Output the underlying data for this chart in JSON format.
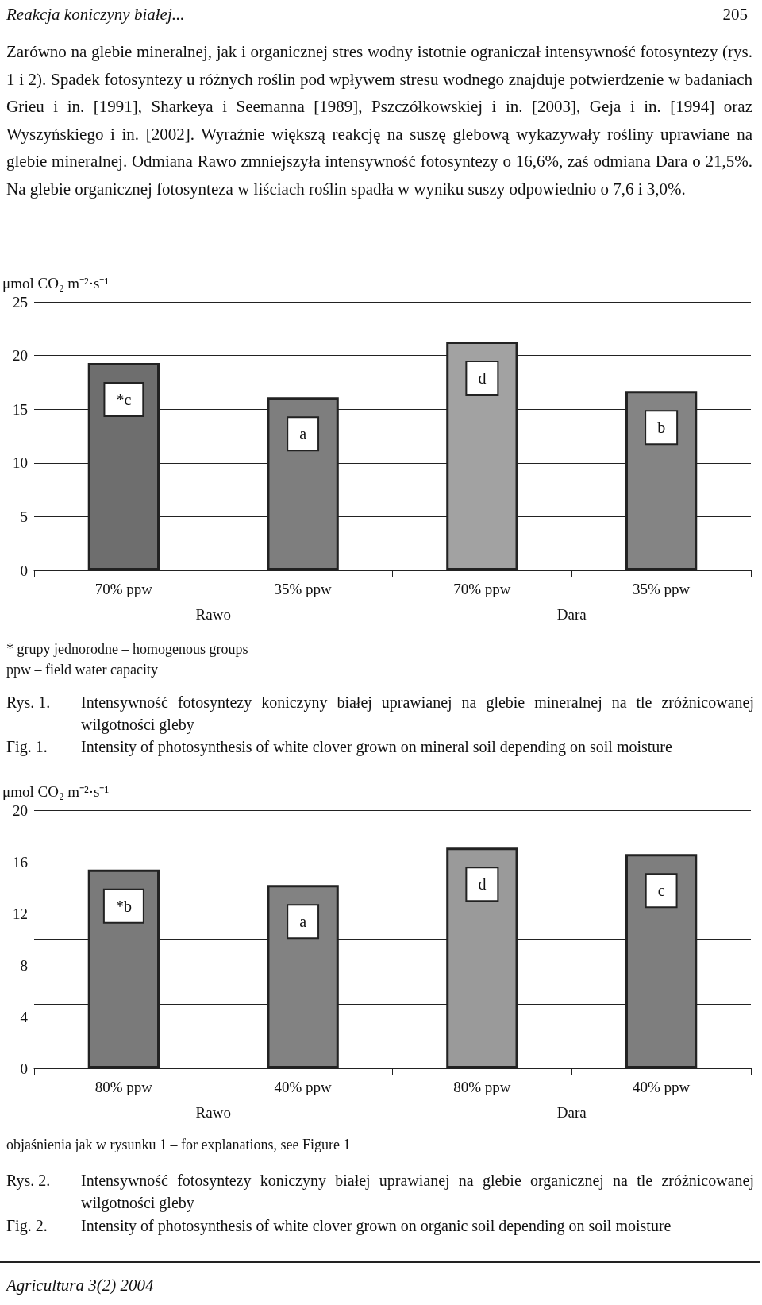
{
  "chart_data": [
    {
      "type": "bar",
      "ylabel": "μmol CO₂ m⁻²·s⁻¹",
      "categories": [
        "70% ppw",
        "35% ppw",
        "70% ppw",
        "35% ppw"
      ],
      "values": [
        19.3,
        16.1,
        21.3,
        16.7
      ],
      "value_labels": [
        "*c",
        "a",
        "d",
        "b"
      ],
      "colors": [
        "#6e6e6e",
        "#7e7e7e",
        "#a2a2a2",
        "#848484"
      ],
      "ylim": [
        0,
        25
      ],
      "yticks": [
        0,
        5,
        10,
        15,
        20,
        25
      ],
      "grid": "y",
      "annotations": [
        "Reakcja koniczyny białej...",
        "205",
        "Zarówno na glebie mineralnej, jak i organicznej stres wodny istotnie ograniczał intensywność fotosyntezy (rys. 1 i 2). Spadek fotosyntezy u różnych roślin pod wpływem stresu wodnego znajduje potwierdzenie w badaniach Grieu i in. [1991], Sharkeya i Seemanna [1989], Pszczółkowskiej i in. [2003], Geja i in. [1994] oraz Wyszyńskiego i in. [2002]. Wyraźnie większą reakcję na suszę glebową wykazywały rośliny uprawiane na glebie mineralnej. Odmiana Rawo zmniejszyła intensywność fotosyntezy o 16,6%, zaś odmiana Dara o 21,5%. Na glebie organicznej fotosynteza w liściach roślin spadła w wyniku suszy odpowiednio o 7,6 i 3,0%.",
        "Rawo",
        "Dara",
        "* grupy jednorodne – homogenous groups",
        "ppw – field water capacity",
        "Rys. 1.",
        "Intensywność fotosyntezy koniczyny białej uprawianej na glebie mineralnej na tle zróżnicowanej wilgotności gleby",
        "Fig. 1.",
        "Intensity of photosynthesis of white clover grown on mineral soil depending on soil moisture"
      ]
    },
    {
      "type": "bar",
      "ylabel": "μmol CO₂ m⁻²·s⁻¹",
      "categories": [
        "80% ppw",
        "40% ppw",
        "80% ppw",
        "40% ppw"
      ],
      "values": [
        15.4,
        14.2,
        17.1,
        16.6
      ],
      "value_labels": [
        "*b",
        "a",
        "d",
        "c"
      ],
      "colors": [
        "#7a7a7a",
        "#828282",
        "#9a9a9a",
        "#7e7e7e"
      ],
      "ylim": [
        0,
        20
      ],
      "yticks": [
        0,
        4,
        8,
        12,
        16,
        20
      ],
      "grid": "y",
      "annotations": [
        "Rawo",
        "Dara",
        "objaśnienia jak w rysunku 1 – for explanations, see Figure 1",
        "Rys. 2.",
        "Intensywność fotosyntezy koniczyny białej uprawianej na glebie organicznej na tle zróżnicowanej wilgotności gleby",
        "Fig. 2.",
        "Intensity of photosynthesis of white clover grown on organic soil depending on soil moisture",
        "Agricultura 3(2) 2004"
      ]
    }
  ]
}
